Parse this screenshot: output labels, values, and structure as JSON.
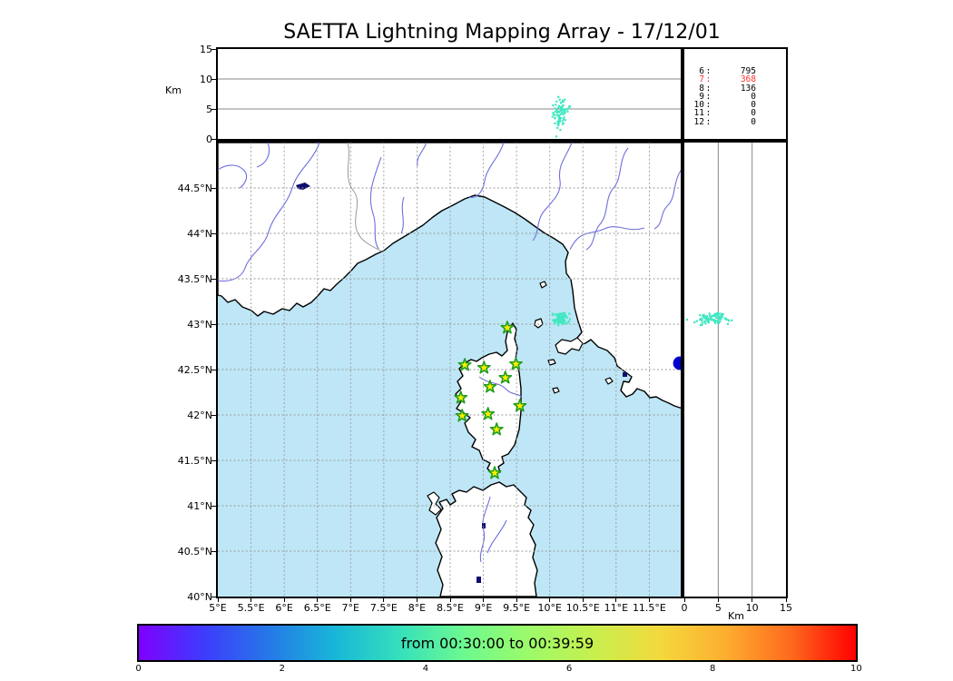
{
  "title": "SAETTA Lightning Mapping Array - 17/12/01",
  "top_panel": {
    "ylabel": "Km",
    "ylim": [
      0,
      15
    ],
    "yticks": [
      0,
      5,
      10,
      15
    ]
  },
  "right_panel": {
    "xlabel": "Km",
    "xlim": [
      0,
      15
    ],
    "xticks": [
      0,
      5,
      10,
      15
    ]
  },
  "stats_box": {
    "rows": [
      {
        "id": "6",
        "value": "795",
        "color": "#000000"
      },
      {
        "id": "7",
        "value": "368",
        "color": "#ff3030"
      },
      {
        "id": "8",
        "value": "136",
        "color": "#000000"
      },
      {
        "id": "9",
        "value": "0",
        "color": "#000000"
      },
      {
        "id": "10",
        "value": "0",
        "color": "#000000"
      },
      {
        "id": "11",
        "value": "0",
        "color": "#000000"
      },
      {
        "id": "12",
        "value": "0",
        "color": "#000000"
      }
    ]
  },
  "map": {
    "lon_min": 5,
    "lon_max": 12,
    "lat_min": 40,
    "lat_max": 45,
    "lon_tick_values": [
      5,
      5.5,
      6,
      6.5,
      7,
      7.5,
      8,
      8.5,
      9,
      9.5,
      10,
      10.5,
      11,
      11.5
    ],
    "lon_tick_labels": [
      "5°E",
      "5.5°E",
      "6°E",
      "6.5°E",
      "7°E",
      "7.5°E",
      "8°E",
      "8.5°E",
      "9°E",
      "9.5°E",
      "10°E",
      "10.5°E",
      "11°E",
      "11.5°E"
    ],
    "lat_tick_values": [
      44.5,
      44,
      43.5,
      43,
      42.5,
      42,
      41.5,
      41,
      40.5,
      40
    ],
    "lat_tick_labels": [
      "44.5°N",
      "44°N",
      "43.5°N",
      "43°N",
      "42.5°N",
      "42°N",
      "41.5°N",
      "41°N",
      "40.5°N",
      "40°N"
    ],
    "sea_color": "#bee6f6",
    "land_color": "#ffffff",
    "river_color": "#6e6ee0",
    "border_color": "#999999",
    "grid_color": "#9a9a9a",
    "lake_color": "#0d0d70"
  },
  "colorbar": {
    "label": "from 00:30:00 to 00:39:59",
    "range": [
      0,
      10
    ],
    "tick_values": [
      0,
      2,
      4,
      6,
      8,
      10
    ],
    "tick_labels": [
      "0",
      "2",
      "4",
      "6",
      "8",
      "10"
    ],
    "gradient": [
      "#7f00ff",
      "#3d3cfd",
      "#2579e8",
      "#18b6d8",
      "#35e0bc",
      "#6ef98f",
      "#9dfa69",
      "#c8ef4e",
      "#f3d93c",
      "#fdae30",
      "#fe6a1d",
      "#ff0000"
    ]
  },
  "chart_data": {
    "type": "scatter",
    "description": "LMA composite view: altitude vs longitude (top), plan-view map (center), altitude vs latitude (right)",
    "panels": [
      {
        "name": "altitude-vs-longitude",
        "type": "scatter",
        "ylabel": "Km",
        "xlim": [
          5,
          12
        ],
        "ylim": [
          0,
          15
        ],
        "yticks": [
          0,
          5,
          10,
          15
        ],
        "grid": "on"
      },
      {
        "name": "plan-view-map",
        "type": "scatter",
        "xlim": [
          5,
          12
        ],
        "ylim": [
          40,
          45
        ],
        "grid": "dashed"
      },
      {
        "name": "altitude-vs-latitude",
        "type": "scatter",
        "xlabel": "Km",
        "xlim": [
          0,
          15
        ],
        "ylim": [
          40,
          45
        ],
        "xticks": [
          0,
          5,
          10,
          15
        ],
        "grid": "on"
      }
    ],
    "stations": {
      "marker": "star",
      "fill": "#ffee00",
      "stroke": "#1f9e1f",
      "lonlat": [
        [
          9.36,
          42.96
        ],
        [
          8.72,
          42.55
        ],
        [
          9.01,
          42.52
        ],
        [
          9.49,
          42.56
        ],
        [
          9.33,
          42.41
        ],
        [
          9.1,
          42.31
        ],
        [
          8.66,
          42.19
        ],
        [
          9.55,
          42.1
        ],
        [
          9.07,
          42.01
        ],
        [
          8.68,
          41.99
        ],
        [
          9.2,
          41.84
        ],
        [
          9.17,
          41.36
        ]
      ]
    },
    "station_counts": {
      "6": 795,
      "7": 368,
      "8": 136,
      "9": 0,
      "10": 0,
      "11": 0,
      "12": 0
    },
    "storm_cluster": {
      "color": "#41e7c2",
      "lon_center": 10.17,
      "lat_center": 43.06,
      "alt_km_center": 4.3,
      "lon_spread": 0.055,
      "lat_spread": 0.035,
      "alt_km_spread": 1.1,
      "n_points": 85,
      "extra_points": [
        {
          "lon": 10.1,
          "lat": 43.05,
          "alt_km": 0.4
        },
        {
          "lon": 10.16,
          "lat": 43.02,
          "alt_km": 1.5
        },
        {
          "lon": 10.05,
          "lat": 43.1,
          "alt_km": 5.6
        }
      ]
    },
    "blue_event": {
      "color": "#0000cd",
      "lon": 11.96,
      "lat": 42.57,
      "radius_px": 7.5
    }
  }
}
